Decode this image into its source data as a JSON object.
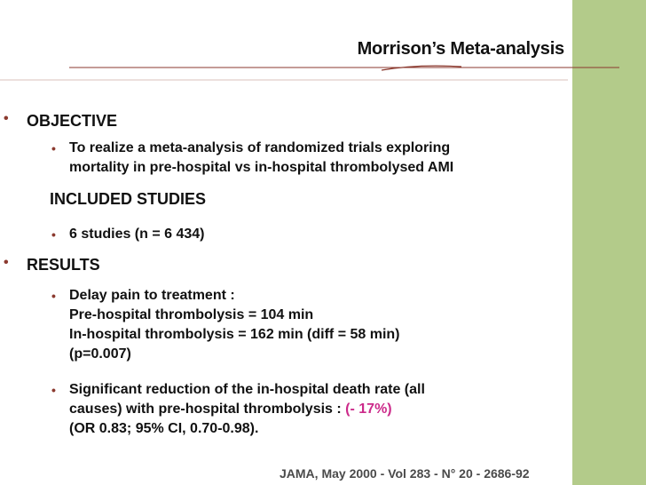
{
  "title": "Morrison’s Meta-analysis",
  "sections": {
    "objective": {
      "heading": "OBJECTIVE",
      "text_line1": "To realize a meta-analysis  of randomized trials exploring",
      "text_line2": "mortality in pre-hospital vs in-hospital thrombolysed AMI"
    },
    "included": {
      "heading": "INCLUDED STUDIES",
      "text": "6 studies  (n = 6 434)"
    },
    "results": {
      "heading": "RESULTS",
      "delay": {
        "line1": "Delay pain to treatment :",
        "line2": "Pre-hospital thrombolysis = 104 min",
        "line3": "In-hospital thrombolysis  = 162 min (diff = 58 min)",
        "line4": "(p=0.007)"
      },
      "reduction": {
        "line1": "Significant reduction of the in-hospital death rate (all",
        "line2": "causes) with pre-hospital thrombolysis : ",
        "highlight": "(- 17%)",
        "line3": "(OR 0.83; 95% CI, 0.70-0.98)."
      }
    }
  },
  "footer": "JAMA, May 2000 - Vol 283 - N° 20 - 2686-92",
  "colors": {
    "side_band": "#b3cb8a",
    "accent": "#8b3a2f",
    "highlight": "#cc2a8a"
  }
}
